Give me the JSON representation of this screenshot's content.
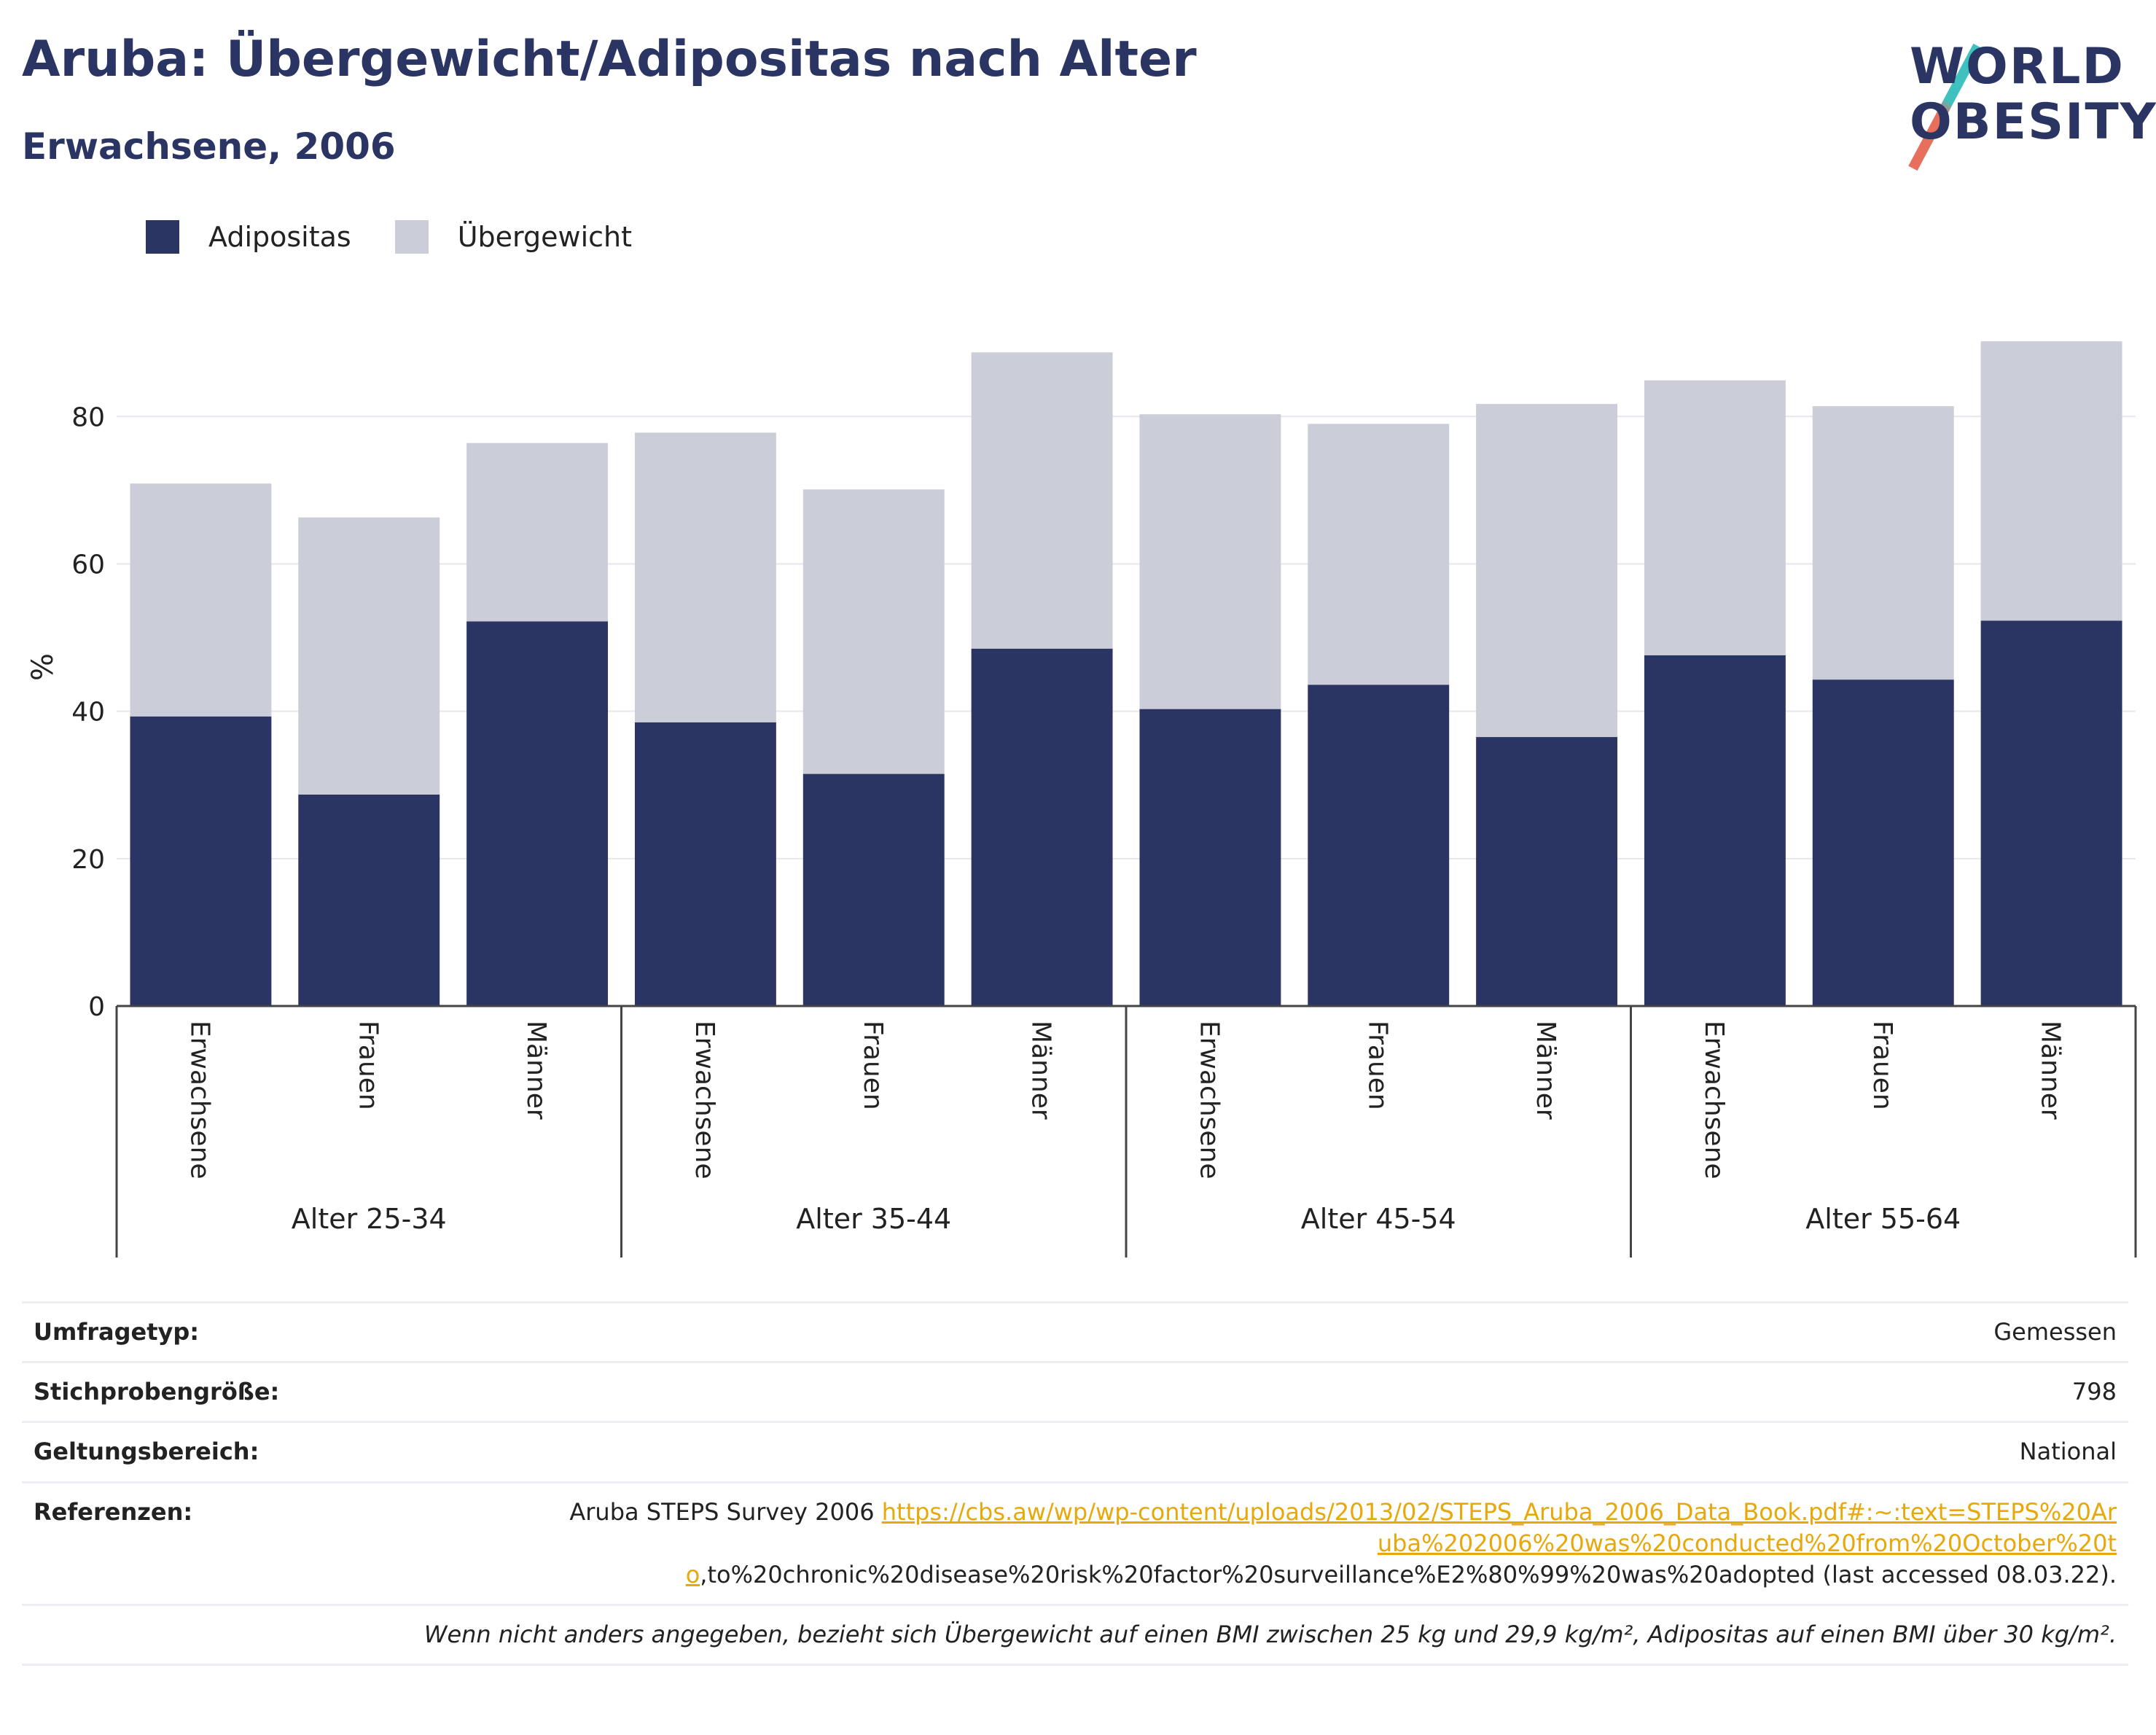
{
  "header": {
    "title": "Aruba: Übergewicht/Adipositas nach Alter",
    "subtitle": "Erwachsene, 2006",
    "logo_line1": "WORLD",
    "logo_line2": "OBESITY"
  },
  "legend": {
    "items": [
      {
        "label": "Adipositas",
        "color": "#2b3563"
      },
      {
        "label": "Übergewicht",
        "color": "#cbcdd8"
      }
    ]
  },
  "chart_data": {
    "type": "bar",
    "stacked": true,
    "ylabel": "%",
    "ylim": [
      0,
      92
    ],
    "yticks": [
      0,
      20,
      40,
      60,
      80
    ],
    "grid": true,
    "legend_position": "top-left",
    "groups": [
      {
        "label": "Alter 25-34",
        "categories": [
          "Erwachsene",
          "Frauen",
          "Männer"
        ]
      },
      {
        "label": "Alter 35-44",
        "categories": [
          "Erwachsene",
          "Frauen",
          "Männer"
        ]
      },
      {
        "label": "Alter 45-54",
        "categories": [
          "Erwachsene",
          "Frauen",
          "Männer"
        ]
      },
      {
        "label": "Alter 55-64",
        "categories": [
          "Erwachsene",
          "Frauen",
          "Männer"
        ]
      }
    ],
    "series": [
      {
        "name": "Adipositas",
        "color": "#2b3563",
        "values": [
          39.3,
          28.7,
          52.2,
          38.5,
          31.5,
          48.5,
          40.3,
          43.6,
          36.5,
          47.6,
          44.3,
          52.3
        ]
      },
      {
        "name": "Übergewicht",
        "color": "#cbcdd8",
        "values": [
          31.6,
          37.6,
          24.2,
          39.3,
          38.6,
          40.2,
          40.0,
          35.4,
          45.2,
          37.3,
          37.1,
          37.9
        ]
      }
    ]
  },
  "info": {
    "survey_type_label": "Umfragetyp:",
    "survey_type_value": "Gemessen",
    "sample_size_label": "Stichprobengröße:",
    "sample_size_value": "798",
    "scope_label": "Geltungsbereich:",
    "scope_value": "National",
    "references_label": "Referenzen:",
    "references_prefix": "Aruba STEPS Survey 2006 ",
    "references_link": "https://cbs.aw/wp/wp-content/uploads/2013/02/STEPS_Aruba_2006_Data_Book.pdf#:~:text=STEPS%20Aruba%202006%20was%20conducted%20from%20October%20to",
    "references_suffix": ",to%20chronic%20disease%20risk%20factor%20surveillance%E2%80%99%20was%20adopted (last accessed 08.03.22).",
    "note": "Wenn nicht anders angegeben, bezieht sich Übergewicht auf einen BMI zwischen 25 kg und 29,9 kg/m², Adipositas auf einen BMI über 30 kg/m²."
  }
}
